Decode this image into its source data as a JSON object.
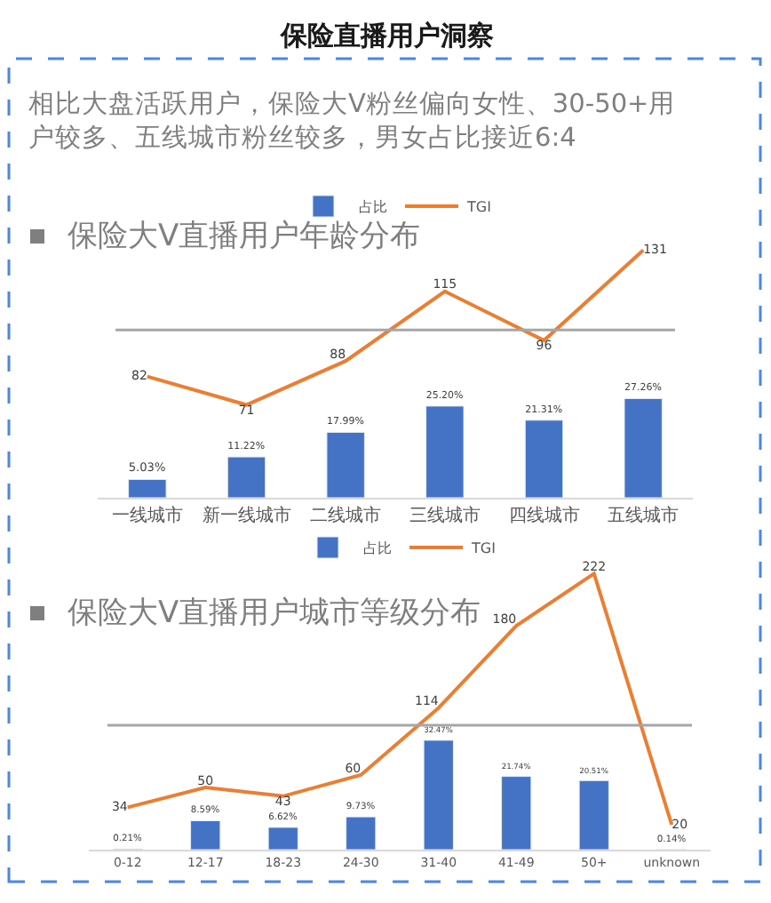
{
  "chart_data": [
    {
      "type": "bar",
      "title": "保险大V直播用户年龄分布",
      "annotations": [
        "保险直播用户洞察",
        "相比大盘活跃用户，保险大V粉丝偏向女性、30-50+用户较多、五线城市粉丝较多，男女占比接近6:4"
      ],
      "categories": [
        "一线城市",
        "新一线城市",
        "二线城市",
        "三线城市",
        "四线城市",
        "五线城市"
      ],
      "series": [
        {
          "name": "占比",
          "color": "#4472c4",
          "values": [
            5.03,
            11.22,
            17.99,
            25.2,
            21.31,
            27.26
          ],
          "value_labels": [
            "5.03%",
            "11.22%",
            "17.99%",
            "25.20%",
            "21.31%",
            "27.26%"
          ]
        },
        {
          "name": "TGI",
          "type": "line",
          "axis": "y2",
          "color": "#ed7d31",
          "values": [
            82,
            71,
            88,
            115,
            96,
            131
          ],
          "value_labels": [
            "82",
            "71",
            "88",
            "115",
            "96",
            "131"
          ]
        }
      ],
      "ref_lines": [
        {
          "axis": "y2",
          "value": 100,
          "color": "#a6a6a6"
        }
      ],
      "legend": "top",
      "tick_labels": "x",
      "marker": "none",
      "line_style": "solid"
    },
    {
      "type": "bar",
      "title": "保险大V直播用户城市等级分布",
      "categories": [
        "0-12",
        "12-17",
        "18-23",
        "24-30",
        "31-40",
        "41-49",
        "50+",
        "unknown"
      ],
      "series": [
        {
          "name": "占比",
          "color": "#4472c4",
          "values": [
            0.21,
            8.59,
            6.62,
            9.73,
            32.47,
            21.74,
            20.51,
            0.14
          ],
          "value_labels": [
            "0.21%",
            "8.59%",
            "6.62%",
            "9.73%",
            "32.47%",
            "21.74%",
            "20.51%",
            "0.14%"
          ]
        },
        {
          "name": "TGI",
          "type": "line",
          "axis": "y2",
          "color": "#ed7d31",
          "values": [
            34,
            50,
            43,
            60,
            114,
            180,
            222,
            20
          ],
          "value_labels": [
            "34",
            "50",
            "43",
            "60",
            "114",
            "180",
            "222",
            "20"
          ]
        }
      ],
      "ref_lines": [
        {
          "axis": "y2",
          "value": 100,
          "color": "#a6a6a6"
        }
      ],
      "legend": "top",
      "tick_labels": "x",
      "marker": "none",
      "line_style": "solid"
    }
  ]
}
